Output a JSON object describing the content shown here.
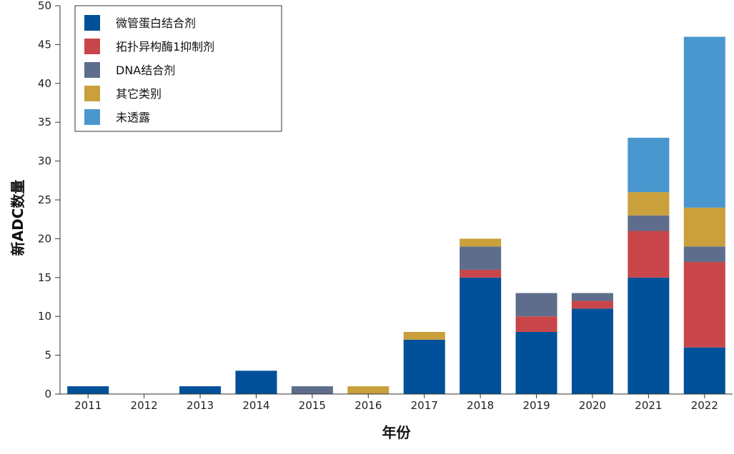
{
  "chart_data": {
    "type": "bar",
    "stacked": true,
    "xlabel": "年份",
    "ylabel": "新ADC数量",
    "ylim": [
      0,
      50
    ],
    "yticks": [
      0,
      5,
      10,
      15,
      20,
      25,
      30,
      35,
      40,
      45,
      50
    ],
    "grid": false,
    "legend_position": "top-left",
    "categories": [
      "2011",
      "2012",
      "2013",
      "2014",
      "2015",
      "2016",
      "2017",
      "2018",
      "2019",
      "2020",
      "2021",
      "2022"
    ],
    "series": [
      {
        "name": "微管蛋白结合剂",
        "color": "#00509a",
        "values": [
          1,
          0,
          1,
          3,
          0,
          0,
          7,
          15,
          8,
          11,
          15,
          6
        ]
      },
      {
        "name": "拓扑异构酶1抑制剂",
        "color": "#c8464a",
        "values": [
          0,
          0,
          0,
          0,
          0,
          0,
          0,
          1,
          2,
          1,
          6,
          11
        ]
      },
      {
        "name": "DNA结合剂",
        "color": "#5f6d8c",
        "values": [
          0,
          0,
          0,
          0,
          1,
          0,
          0,
          3,
          3,
          1,
          2,
          2
        ]
      },
      {
        "name": "其它类别",
        "color": "#c9a03c",
        "values": [
          0,
          0,
          0,
          0,
          0,
          1,
          1,
          1,
          0,
          0,
          3,
          5
        ]
      },
      {
        "name": "未透露",
        "color": "#4a97cf",
        "values": [
          0,
          0,
          0,
          0,
          0,
          0,
          0,
          0,
          0,
          0,
          7,
          22
        ]
      }
    ]
  }
}
